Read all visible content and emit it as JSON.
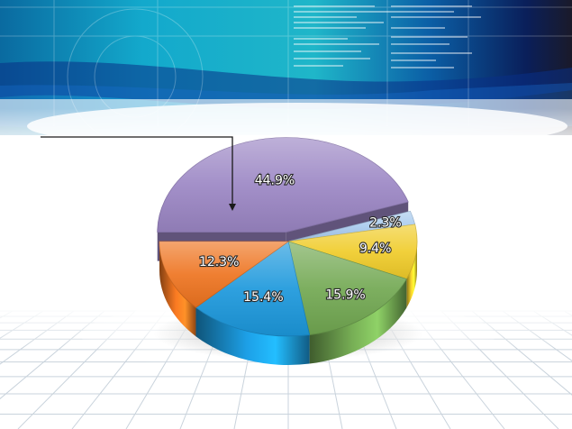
{
  "chart_data": {
    "type": "pie",
    "title": "",
    "categories": [
      "",
      "",
      "",
      "",
      "",
      ""
    ],
    "values": [
      44.9,
      2.3,
      9.4,
      15.9,
      15.4,
      12.3
    ],
    "labels": [
      "44.9%",
      "2.3%",
      "9.4%",
      "15.9%",
      "15.4%",
      "12.3%"
    ],
    "colors": [
      "#9b86c4",
      "#a9cbee",
      "#f0cc2a",
      "#72a852",
      "#1c98dc",
      "#ee7420"
    ],
    "exploded": [
      true,
      false,
      false,
      false,
      false,
      false
    ],
    "three_d": true,
    "legend": "none",
    "annotation": "arrow pointing to the 44.9% slice"
  },
  "background": {
    "banner_colors": [
      "#0a7fb0",
      "#12b3cf",
      "#0a2a6e"
    ],
    "floor_grid": true,
    "grid_color": "#c9d3dc"
  }
}
